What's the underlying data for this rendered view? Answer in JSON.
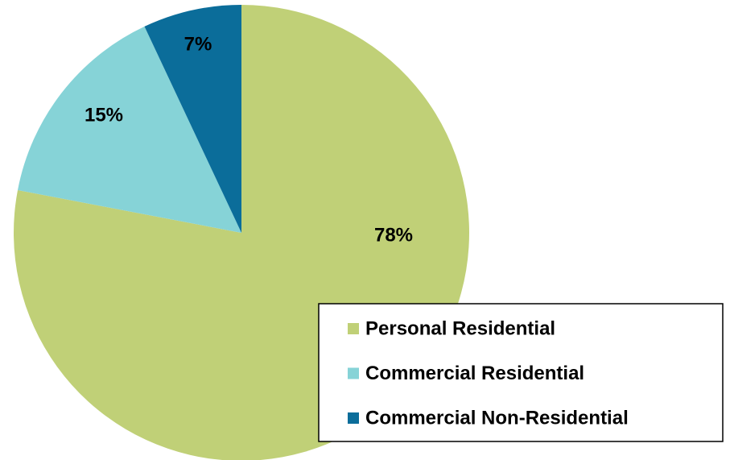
{
  "chart_data": {
    "type": "pie",
    "categories": [
      "Personal Residential",
      "Commercial Residential",
      "Commercial Non-Residential"
    ],
    "values": [
      78,
      15,
      7
    ],
    "value_labels": [
      "78%",
      "15%",
      "7%"
    ],
    "colors": [
      "#c0d077",
      "#86d3d7",
      "#0b6d9a"
    ],
    "legend": "lower right"
  }
}
